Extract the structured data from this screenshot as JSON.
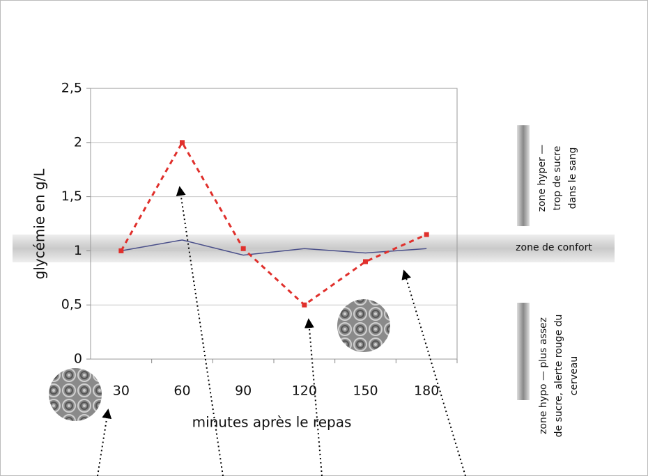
{
  "chart_data": {
    "type": "line",
    "categories": [
      "30",
      "60",
      "90",
      "120",
      "150",
      "180"
    ],
    "series": [
      {
        "color": "#4a4f8a",
        "dash": false,
        "values": [
          1,
          1.1,
          0.96,
          1.02,
          0.98,
          1.02
        ]
      },
      {
        "color": "#e0302c",
        "dash": true,
        "values": [
          1,
          2,
          1.02,
          0.5,
          0.9,
          1.15
        ]
      }
    ],
    "ylim": [
      0,
      2.5
    ],
    "yticks": [
      0,
      {
        "value": 0.5,
        "label": "0,5"
      },
      1,
      {
        "value": 1.5,
        "label": "1,5"
      },
      2,
      {
        "value": 2.5,
        "label": "2,5"
      }
    ],
    "grid": true,
    "ylabel": "glycémie en g/L",
    "xlabel": "minutes après le repas",
    "annotations": {
      "comfort": "zone de confort",
      "hyper": [
        "zone hyper —",
        "trop de sucre",
        "dans le sang"
      ],
      "hypo": [
        "zone hypo — plus assez",
        "de sucre, alerte rouge du",
        "cerveau"
      ]
    }
  }
}
